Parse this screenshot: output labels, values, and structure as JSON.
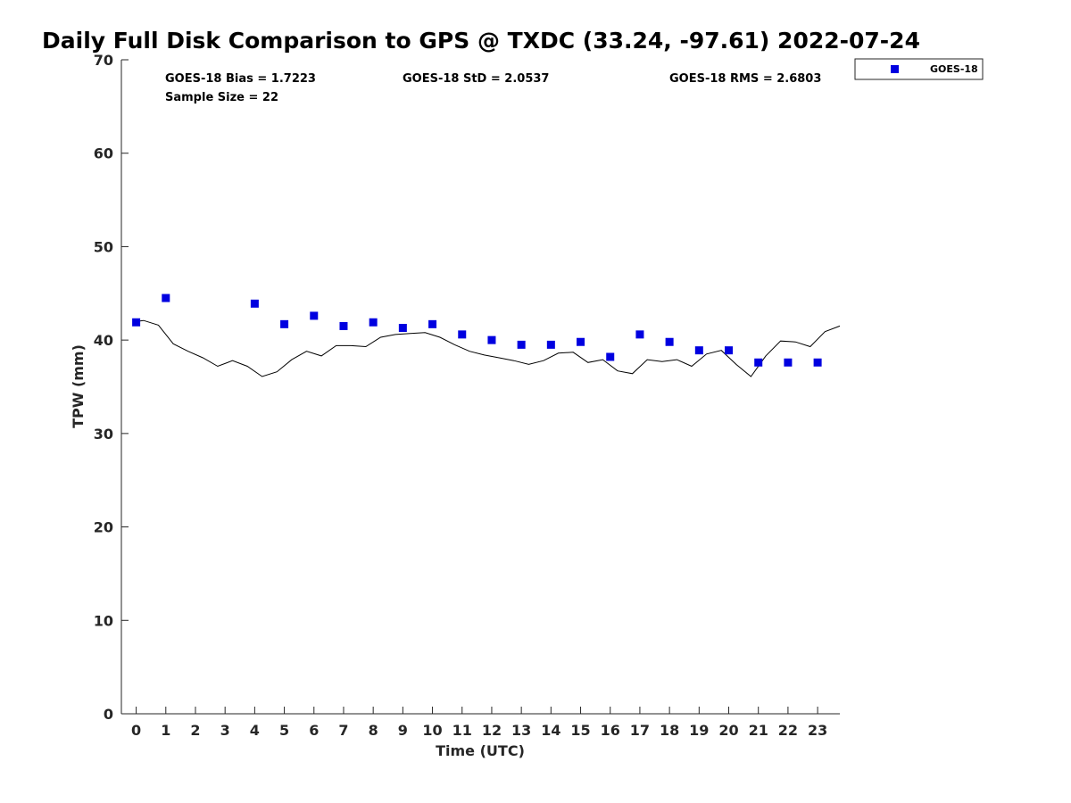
{
  "chart_data": {
    "type": "scatter",
    "title": "Daily Full Disk Comparison to GPS @ TXDC (33.24, -97.61) 2022-07-24",
    "xlabel": "Time (UTC)",
    "ylabel": "TPW (mm)",
    "xlim": [
      -0.5,
      23.75
    ],
    "ylim": [
      0,
      70
    ],
    "x_ticks": [
      "0",
      "1",
      "2",
      "3",
      "4",
      "5",
      "6",
      "7",
      "8",
      "9",
      "10",
      "11",
      "12",
      "13",
      "14",
      "15",
      "16",
      "17",
      "18",
      "19",
      "20",
      "21",
      "22",
      "23"
    ],
    "y_ticks": [
      "0",
      "10",
      "20",
      "30",
      "40",
      "50",
      "60",
      "70"
    ],
    "grid": false,
    "legend": {
      "position": "outside-top-right",
      "entries": [
        "GOES-18"
      ]
    },
    "stats": {
      "bias": "GOES-18 Bias = 1.7223",
      "std": "GOES-18 StD = 2.0537",
      "rms": "GOES-18 RMS = 2.6803",
      "sample_size": "Sample Size = 22"
    },
    "series": [
      {
        "name": "GOES-18",
        "kind": "markers",
        "color": "#0000e0",
        "marker": "square",
        "x": [
          0,
          1,
          4,
          5,
          6,
          7,
          8,
          9,
          10,
          11,
          12,
          13,
          14,
          15,
          16,
          17,
          18,
          19,
          20,
          21,
          22,
          23
        ],
        "y": [
          41.9,
          44.5,
          43.9,
          41.7,
          42.6,
          41.5,
          41.9,
          41.3,
          41.7,
          40.6,
          40.0,
          39.5,
          39.5,
          39.8,
          38.2,
          40.6,
          39.8,
          38.9,
          38.9,
          37.6,
          37.6,
          37.6
        ]
      },
      {
        "kind": "line",
        "color": "#000000",
        "x": [
          0,
          0.25,
          0.75,
          1.25,
          1.75,
          2.25,
          2.75,
          3.25,
          3.75,
          4.25,
          4.75,
          5.25,
          5.75,
          6.25,
          6.75,
          7.25,
          7.75,
          8.25,
          8.75,
          9.25,
          9.75,
          10.25,
          10.75,
          11.25,
          11.75,
          12.25,
          12.75,
          13.25,
          13.75,
          14.25,
          14.75,
          15.25,
          15.75,
          16.25,
          16.75,
          17.25,
          17.75,
          18.25,
          18.75,
          19.25,
          19.75,
          20.25,
          20.75,
          21.25,
          21.75,
          22.25,
          22.75,
          23.25,
          23.75
        ],
        "y": [
          42.0,
          42.1,
          41.6,
          39.6,
          38.8,
          38.1,
          37.2,
          37.8,
          37.2,
          36.1,
          36.6,
          37.9,
          38.8,
          38.3,
          39.4,
          39.4,
          39.3,
          40.3,
          40.6,
          40.7,
          40.8,
          40.3,
          39.5,
          38.8,
          38.4,
          38.1,
          37.8,
          37.4,
          37.8,
          38.6,
          38.7,
          37.6,
          37.9,
          36.7,
          36.4,
          37.9,
          37.7,
          37.9,
          37.2,
          38.5,
          38.9,
          37.4,
          36.1,
          38.3,
          39.9,
          39.8,
          39.3,
          40.9,
          41.5
        ]
      }
    ]
  }
}
